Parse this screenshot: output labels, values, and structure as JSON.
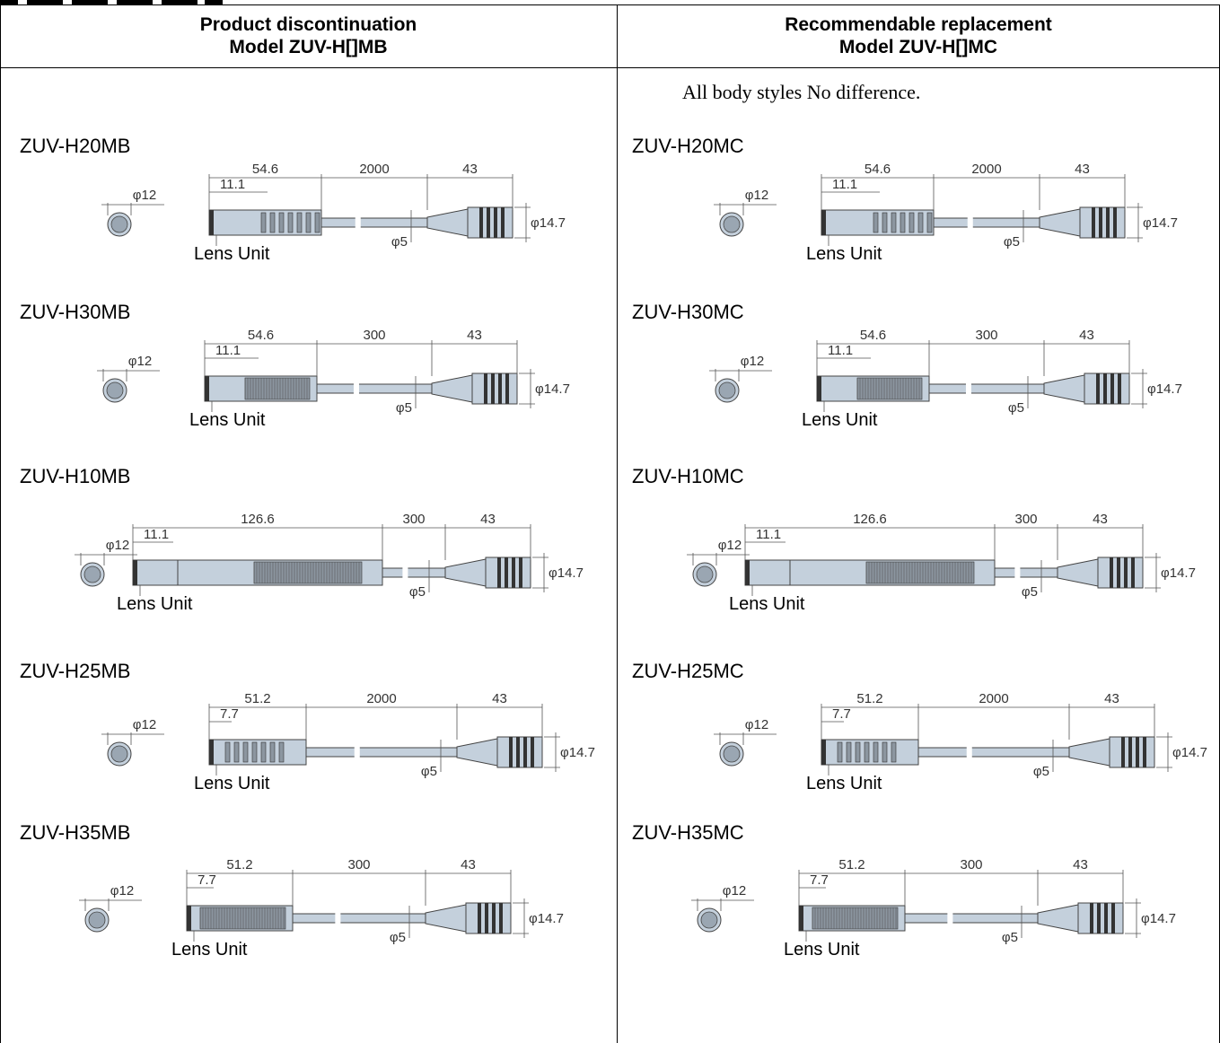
{
  "table": {
    "left_header_line1": "Product discontinuation",
    "left_header_line2": "Model ZUV-H[]MB",
    "right_header_line1": "Recommendable replacement",
    "right_header_line2": "Model ZUV-H[]MC",
    "note": "All body styles No difference."
  },
  "lens_label": "Lens Unit",
  "dims": {
    "diam_head": "φ12",
    "diam_connector": "φ14.7",
    "diam_cable": "φ5",
    "offset_long": "11.1",
    "offset_short": "7.7"
  },
  "left_models": [
    {
      "name": "ZUV-H20MB",
      "head_len": "54.6",
      "cable_len": "2000",
      "conn_len": "43"
    },
    {
      "name": "ZUV-H30MB",
      "head_len": "54.6",
      "cable_len": "300",
      "conn_len": "43"
    },
    {
      "name": "ZUV-H10MB",
      "head_len": "126.6",
      "cable_len": "300",
      "conn_len": "43"
    },
    {
      "name": "ZUV-H25MB",
      "head_len": "51.2",
      "cable_len": "2000",
      "conn_len": "43"
    },
    {
      "name": "ZUV-H35MB",
      "head_len": "51.2",
      "cable_len": "300",
      "conn_len": "43"
    }
  ],
  "right_models": [
    {
      "name": "ZUV-H20MC",
      "head_len": "54.6",
      "cable_len": "2000",
      "conn_len": "43"
    },
    {
      "name": "ZUV-H30MC",
      "head_len": "54.6",
      "cable_len": "300",
      "conn_len": "43"
    },
    {
      "name": "ZUV-H10MC",
      "head_len": "126.6",
      "cable_len": "300",
      "conn_len": "43"
    },
    {
      "name": "ZUV-H25MC",
      "head_len": "51.2",
      "cable_len": "2000",
      "conn_len": "43"
    },
    {
      "name": "ZUV-H35MC",
      "head_len": "51.2",
      "cable_len": "300",
      "conn_len": "43"
    }
  ]
}
